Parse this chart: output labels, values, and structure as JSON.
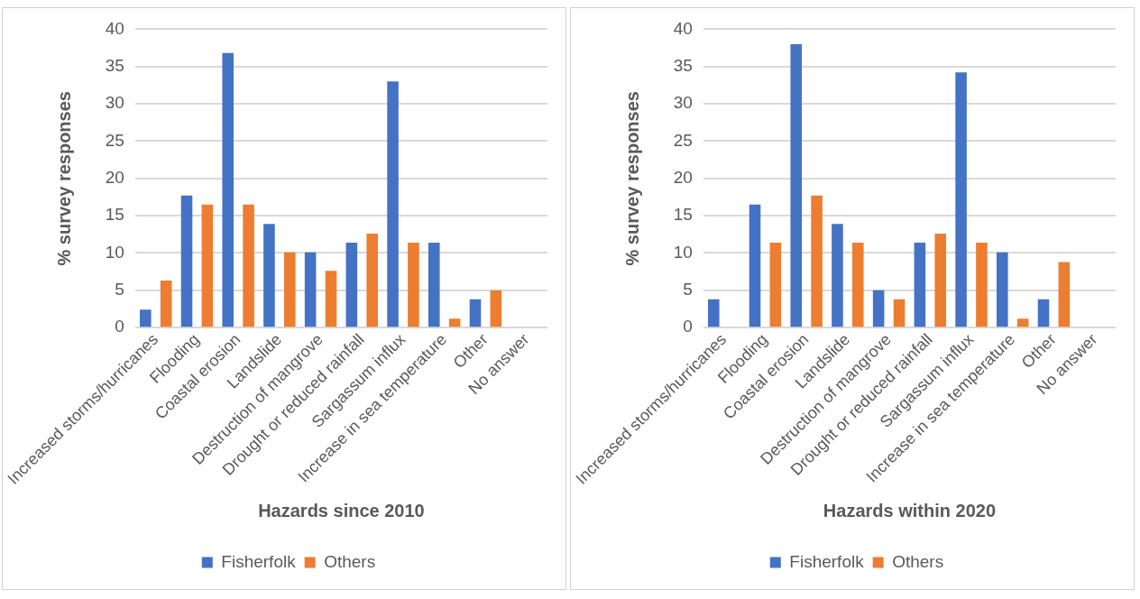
{
  "chart_data": [
    {
      "type": "bar",
      "xlabel": "Hazards since 2010",
      "ylabel": "% survey responses",
      "categories": [
        "Increased storms/hurricanes",
        "Flooding",
        "Coastal erosion",
        "Landslide",
        "Destruction of mangrove",
        "Drought or reduced rainfall",
        "Sargassum influx",
        "Increase in sea temperature",
        "Other",
        "No answer"
      ],
      "series": [
        {
          "name": "Fisherfolk",
          "color": "#4472c4",
          "values": [
            2.4,
            17.7,
            36.8,
            13.9,
            10.1,
            11.4,
            33.0,
            11.4,
            3.8,
            0
          ]
        },
        {
          "name": "Others",
          "color": "#ed7d31",
          "values": [
            6.3,
            16.5,
            16.5,
            10.1,
            7.6,
            12.6,
            11.4,
            1.2,
            5.0,
            0
          ]
        }
      ],
      "ylim": [
        0,
        40
      ],
      "yticks": [
        0,
        5,
        10,
        15,
        20,
        25,
        30,
        35,
        40
      ],
      "grid": "y",
      "legend": "bottom"
    },
    {
      "type": "bar",
      "xlabel": "Hazards within 2020",
      "ylabel": "% survey responses",
      "categories": [
        "Increased storms/hurricanes",
        "Flooding",
        "Coastal erosion",
        "Landslide",
        "Destruction of mangrove",
        "Drought or reduced rainfall",
        "Sargassum influx",
        "Increase in sea temperature",
        "Other",
        "No answer"
      ],
      "series": [
        {
          "name": "Fisherfolk",
          "color": "#4472c4",
          "values": [
            3.8,
            16.5,
            38.0,
            13.9,
            5.0,
            11.4,
            34.2,
            10.1,
            3.8,
            0
          ]
        },
        {
          "name": "Others",
          "color": "#ed7d31",
          "values": [
            0,
            11.4,
            17.7,
            11.4,
            3.8,
            12.6,
            11.4,
            1.2,
            8.8,
            0
          ]
        }
      ],
      "ylim": [
        0,
        40
      ],
      "yticks": [
        0,
        5,
        10,
        15,
        20,
        25,
        30,
        35,
        40
      ],
      "grid": "y",
      "legend": "bottom"
    }
  ]
}
